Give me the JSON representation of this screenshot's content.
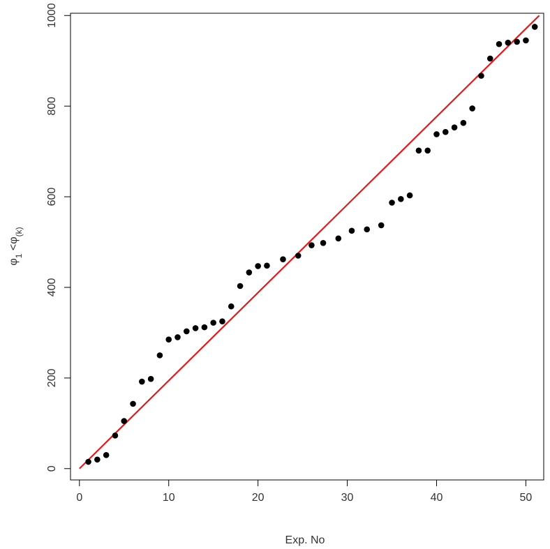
{
  "chart_data": {
    "type": "scatter",
    "title": "",
    "xlabel": "Exp. No",
    "ylabel": {
      "main": "φ",
      "sub1": "1",
      "mid": " <φ",
      "sub2": "(k)"
    },
    "xlim": [
      -1,
      52
    ],
    "ylim": [
      -25,
      1005
    ],
    "x_ticks": [
      0,
      10,
      20,
      30,
      40,
      50
    ],
    "y_ticks": [
      0,
      200,
      400,
      600,
      800,
      1000
    ],
    "grid": false,
    "legend": "none",
    "points_color": "#000000",
    "line_color": "#e31a1c",
    "reference_line": {
      "x": [
        0,
        51.5
      ],
      "y": [
        0,
        1000
      ]
    },
    "series": [
      {
        "x": [
          1,
          2,
          3,
          4,
          5,
          6,
          7,
          8,
          9,
          10,
          11,
          12,
          13,
          14,
          15,
          16,
          17,
          18,
          19,
          20,
          21,
          22.8,
          24.5,
          26,
          27.3,
          29,
          30.5,
          32.2,
          33.8,
          35,
          36,
          37,
          38,
          39,
          40,
          41,
          42,
          43,
          44,
          45,
          46,
          47,
          48,
          49,
          50,
          51
        ],
        "y": [
          15,
          20,
          30,
          73,
          105,
          143,
          192,
          198,
          250,
          285,
          290,
          303,
          310,
          312,
          322,
          325,
          358,
          403,
          433,
          447,
          448,
          462,
          470,
          493,
          498,
          508,
          525,
          528,
          537,
          587,
          595,
          603,
          702,
          702,
          738,
          743,
          753,
          763,
          795,
          867,
          905,
          937,
          940,
          942,
          945,
          975
        ]
      }
    ]
  }
}
